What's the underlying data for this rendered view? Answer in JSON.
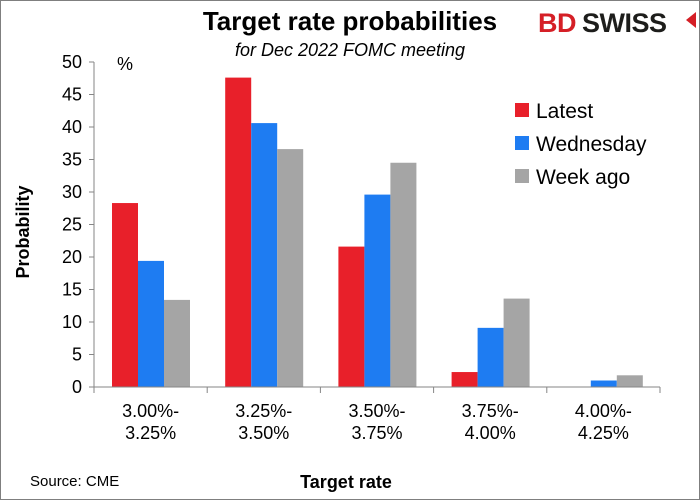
{
  "header": {
    "title": "Target rate probabilities",
    "subtitle": "for Dec 2022 FOMC meeting"
  },
  "logo": {
    "part1": "BD",
    "part2": "SWISS"
  },
  "source": "Source: CME",
  "colors": {
    "latest": "#e8202a",
    "wednesday": "#1e7cf2",
    "week_ago": "#a5a5a5",
    "brand_red": "#d51f26"
  },
  "chart_data": {
    "type": "bar",
    "title": "Target rate probabilities",
    "subtitle": "for Dec 2022 FOMC meeting",
    "xlabel": "Target rate",
    "ylabel": "Probability",
    "yunit": "%",
    "ylim": [
      0,
      50
    ],
    "yticks": [
      0,
      5,
      10,
      15,
      20,
      25,
      30,
      35,
      40,
      45,
      50
    ],
    "categories": [
      [
        "3.00%-",
        "3.25%"
      ],
      [
        "3.25%-",
        "3.50%"
      ],
      [
        "3.50%-",
        "3.75%"
      ],
      [
        "3.75%-",
        "4.00%"
      ],
      [
        "4.00%-",
        "4.25%"
      ]
    ],
    "series": [
      {
        "name": "Latest",
        "color": "#e8202a",
        "values": [
          28.3,
          47.6,
          21.6,
          2.3,
          0
        ]
      },
      {
        "name": "Wednesday",
        "color": "#1e7cf2",
        "values": [
          19.4,
          40.6,
          29.6,
          9.1,
          1.0
        ]
      },
      {
        "name": "Week ago",
        "color": "#a5a5a5",
        "values": [
          13.4,
          36.6,
          34.5,
          13.6,
          1.8
        ]
      }
    ],
    "grid": false,
    "legend_position": "top-right"
  }
}
